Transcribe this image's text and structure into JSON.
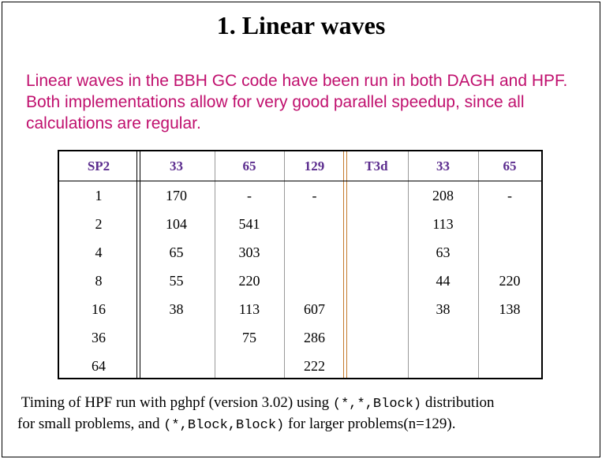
{
  "title": "1. Linear waves",
  "paragraph": [
    "Linear waves in the BBH GC code have been run in both DAGH and HPF.",
    "Both implementations allow for very good parallel speedup, since all",
    "calculations are regular."
  ],
  "table": {
    "header": [
      "SP2",
      "33",
      "65",
      "129",
      "T3d",
      "33",
      "65"
    ],
    "rows": [
      [
        "1",
        "170",
        "-",
        "-",
        null,
        "208",
        "-"
      ],
      [
        "2",
        "104",
        "541",
        null,
        null,
        "113",
        null
      ],
      [
        "4",
        "65",
        "303",
        null,
        null,
        "63",
        null
      ],
      [
        "8",
        "55",
        "220",
        null,
        null,
        "44",
        "220"
      ],
      [
        "16",
        "38",
        "113",
        "607",
        null,
        "38",
        "138"
      ],
      [
        "36",
        null,
        "75",
        "286",
        null,
        null,
        null
      ],
      [
        "64",
        null,
        null,
        "222",
        null,
        null,
        null
      ]
    ]
  },
  "caption": [
    "Timing of HPF run with pghpf (version 3.02) using",
    "(*,*,Block)",
    "distribution",
    "for small problems, and",
    "(*,Block,Block)",
    "for larger problems(n=129)."
  ]
}
